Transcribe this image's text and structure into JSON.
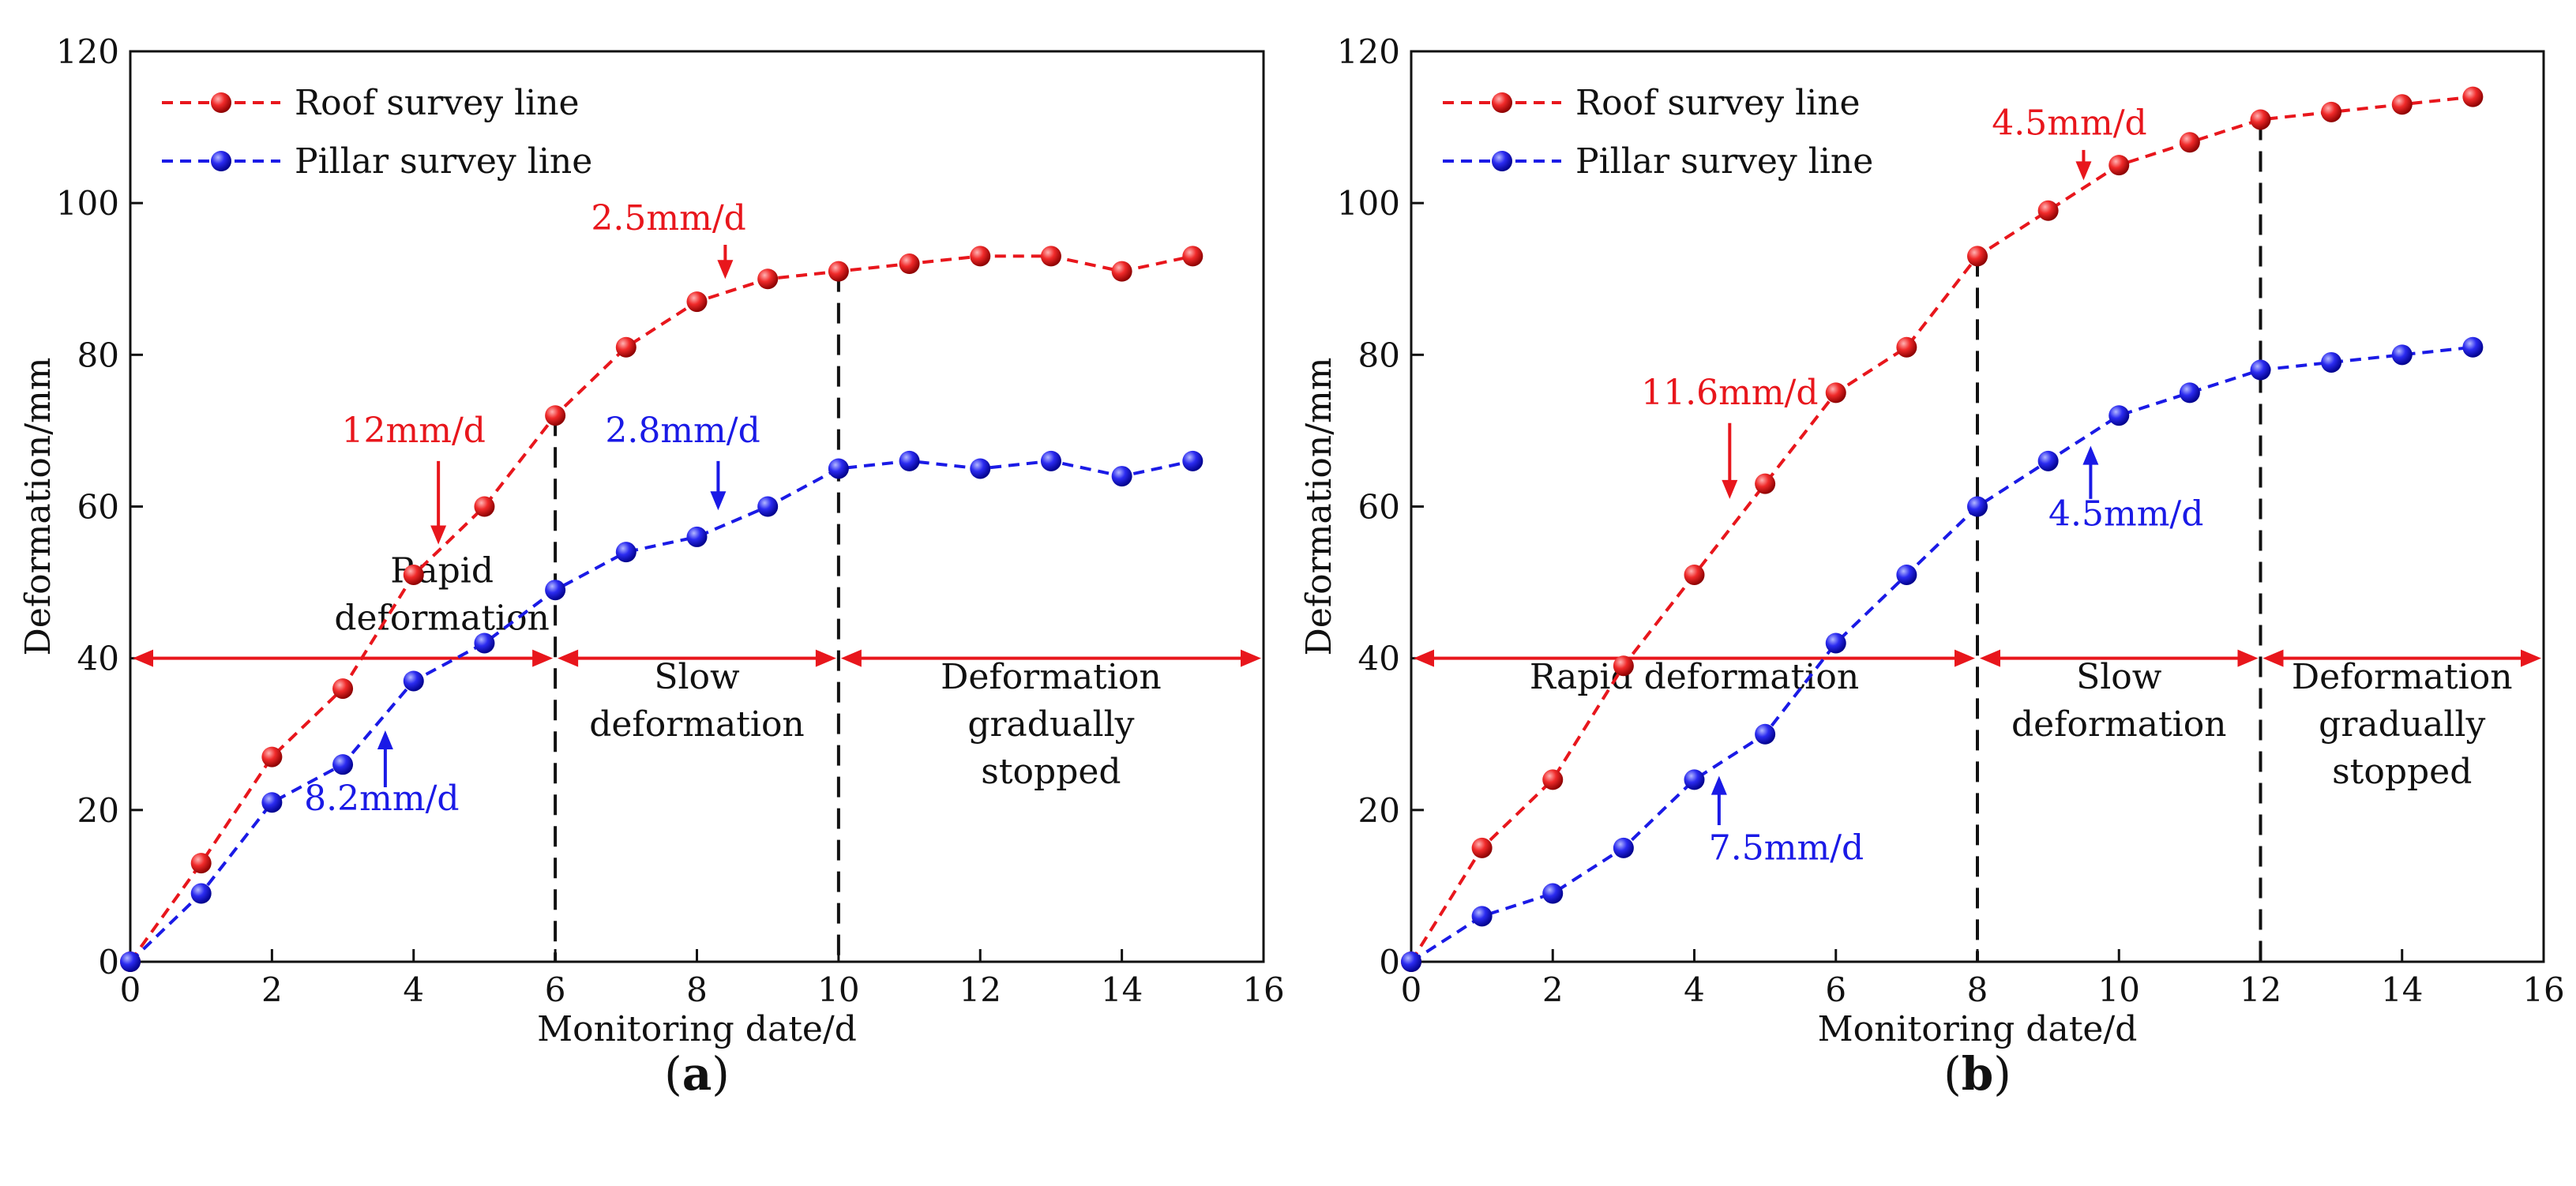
{
  "chart_data": [
    {
      "type": "line",
      "panel_label": "a",
      "xlabel": "Monitoring date/d",
      "ylabel": "Deformation/mm",
      "xlim": [
        0,
        16
      ],
      "ylim": [
        0,
        120
      ],
      "xticks": [
        0,
        2,
        4,
        6,
        8,
        10,
        12,
        14,
        16
      ],
      "yticks": [
        0,
        20,
        40,
        60,
        80,
        100,
        120
      ],
      "x": [
        0,
        1,
        2,
        3,
        4,
        5,
        6,
        7,
        8,
        9,
        10,
        11,
        12,
        13,
        14,
        15
      ],
      "series": [
        {
          "name": "Roof survey line",
          "color": "#e8161c",
          "values": [
            0,
            13,
            27,
            36,
            51,
            60,
            72,
            81,
            87,
            90,
            91,
            92,
            93,
            93,
            91,
            93
          ]
        },
        {
          "name": "Pillar survey line",
          "color": "#1a1ae6",
          "values": [
            0,
            9,
            21,
            26,
            37,
            42,
            49,
            54,
            56,
            60,
            65,
            66,
            65,
            66,
            64,
            66
          ]
        }
      ],
      "phase_boundaries": [
        6,
        10
      ],
      "phase_arrow_y": 40,
      "phases": [
        {
          "lines": [
            "Rapid",
            "deformation"
          ],
          "x": 4.4,
          "y": 50
        },
        {
          "lines": [
            "Slow",
            "deformation"
          ],
          "x": 8.0,
          "y": 36
        },
        {
          "lines": [
            "Deformation",
            "gradually",
            "stopped"
          ],
          "x": 13.0,
          "y": 36
        }
      ],
      "annotations": [
        {
          "text": "12mm/d",
          "color": "#e8161c",
          "text_x": 4.0,
          "text_y": 68.5,
          "arrow_x": 4.35,
          "from_y": 66,
          "to_y": 55
        },
        {
          "text": "2.5mm/d",
          "color": "#e8161c",
          "text_x": 7.6,
          "text_y": 96.5,
          "arrow_x": 8.4,
          "from_y": 94.5,
          "to_y": 90
        },
        {
          "text": "2.8mm/d",
          "color": "#1a1ae6",
          "text_x": 7.8,
          "text_y": 68.5,
          "arrow_x": 8.3,
          "from_y": 66,
          "to_y": 59.5
        },
        {
          "text": "8.2mm/d",
          "color": "#1a1ae6",
          "text_x": 3.55,
          "text_y": 20,
          "arrow_x": 3.6,
          "from_y": 23,
          "to_y": 30.5
        }
      ],
      "legend_position": "top-left"
    },
    {
      "type": "line",
      "panel_label": "b",
      "xlabel": "Monitoring date/d",
      "ylabel": "Deformation/mm",
      "xlim": [
        0,
        16
      ],
      "ylim": [
        0,
        120
      ],
      "xticks": [
        0,
        2,
        4,
        6,
        8,
        10,
        12,
        14,
        16
      ],
      "yticks": [
        0,
        20,
        40,
        60,
        80,
        100,
        120
      ],
      "x": [
        0,
        1,
        2,
        3,
        4,
        5,
        6,
        7,
        8,
        9,
        10,
        11,
        12,
        13,
        14,
        15
      ],
      "series": [
        {
          "name": "Roof survey line",
          "color": "#e8161c",
          "values": [
            0,
            15,
            24,
            39,
            51,
            63,
            75,
            81,
            93,
            99,
            105,
            108,
            111,
            112,
            113,
            114
          ]
        },
        {
          "name": "Pillar survey line",
          "color": "#1a1ae6",
          "values": [
            0,
            6,
            9,
            15,
            24,
            30,
            42,
            51,
            60,
            66,
            72,
            75,
            78,
            79,
            80,
            81
          ]
        }
      ],
      "phase_boundaries": [
        8,
        12
      ],
      "phase_arrow_y": 40,
      "phases": [
        {
          "lines": [
            "Rapid deformation"
          ],
          "x": 4.0,
          "y": 36
        },
        {
          "lines": [
            "Slow",
            "deformation"
          ],
          "x": 10.0,
          "y": 36
        },
        {
          "lines": [
            "Deformation",
            "gradually",
            "stopped"
          ],
          "x": 14.0,
          "y": 36
        }
      ],
      "annotations": [
        {
          "text": "11.6mm/d",
          "color": "#e8161c",
          "text_x": 4.5,
          "text_y": 73.5,
          "arrow_x": 4.5,
          "from_y": 71,
          "to_y": 61
        },
        {
          "text": "4.5mm/d",
          "color": "#e8161c",
          "text_x": 9.3,
          "text_y": 109,
          "arrow_x": 9.5,
          "from_y": 107,
          "to_y": 103
        },
        {
          "text": "4.5mm/d",
          "color": "#1a1ae6",
          "text_x": 10.1,
          "text_y": 57.5,
          "arrow_x": 9.6,
          "from_y": 61,
          "to_y": 68
        },
        {
          "text": "7.5mm/d",
          "color": "#1a1ae6",
          "text_x": 5.3,
          "text_y": 13.5,
          "arrow_x": 4.35,
          "from_y": 18,
          "to_y": 24.5
        }
      ],
      "legend_position": "top-left"
    }
  ]
}
